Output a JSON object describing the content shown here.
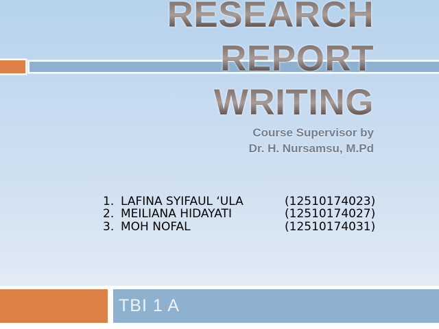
{
  "colors": {
    "accent_orange": "#dd8047",
    "accent_blue": "#8fb1d0",
    "bg_top": "#b6d2ec",
    "bg_bottom": "#e9f0f9",
    "title_light": "#a79c98",
    "title_dark": "#4a413e",
    "subtitle_text": "#6f7e90",
    "list_text": "#000000",
    "footer_text": "#edf3f9"
  },
  "slide": {
    "title_lines": [
      "RESEARCH",
      "REPORT",
      "WRITING"
    ],
    "subtitle_lines": [
      "Course Supervisor by",
      "Dr. H. Nursamsu, M.Pd"
    ],
    "members": [
      {
        "num": "1.",
        "name": "LAFINA SYIFAUL ‘ULA",
        "id": "(12510174023)"
      },
      {
        "num": "2.",
        "name": "MEILIANA HIDAYATI",
        "id": "(12510174027)"
      },
      {
        "num": "3.",
        "name": "MOH NOFAL",
        "id": "(12510174031)"
      }
    ],
    "footer": {
      "label": "TBI 1 A"
    }
  }
}
